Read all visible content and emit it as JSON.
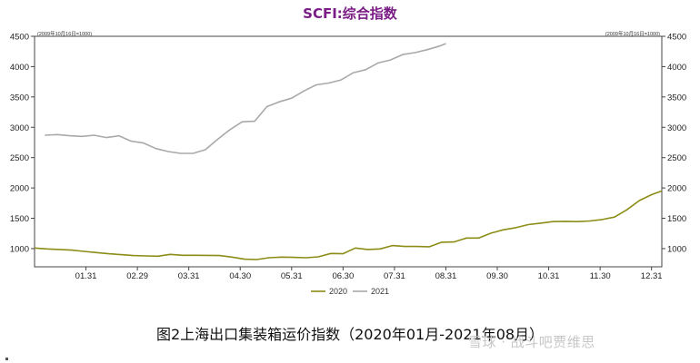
{
  "chart_data": {
    "type": "line",
    "title": "SCFI:综合指数",
    "left_note": "(2009年10月16日=1000)",
    "right_note": "(2009年10月16日=1000)",
    "ylim": [
      700,
      4500
    ],
    "yticks": [
      1000,
      1500,
      2000,
      2500,
      3000,
      3500,
      4000,
      4500
    ],
    "xlim": [
      0,
      12.2
    ],
    "xticks": [
      {
        "label": "01.31",
        "x": 1
      },
      {
        "label": "02.29",
        "x": 2
      },
      {
        "label": "03.31",
        "x": 3
      },
      {
        "label": "04.30",
        "x": 4
      },
      {
        "label": "05.31",
        "x": 5
      },
      {
        "label": "06.30",
        "x": 6
      },
      {
        "label": "07.31",
        "x": 7
      },
      {
        "label": "08.31",
        "x": 8
      },
      {
        "label": "09.30",
        "x": 9
      },
      {
        "label": "10.31",
        "x": 10
      },
      {
        "label": "11.30",
        "x": 11
      },
      {
        "label": "12.31",
        "x": 12
      }
    ],
    "series": [
      {
        "name": "2020",
        "color": "#8c8c16",
        "x": [
          0.0,
          0.24,
          0.48,
          0.72,
          0.96,
          1.2,
          1.44,
          1.68,
          1.92,
          2.16,
          2.4,
          2.64,
          2.88,
          3.12,
          3.36,
          3.6,
          3.84,
          4.08,
          4.32,
          4.56,
          4.8,
          5.04,
          5.28,
          5.52,
          5.76,
          6.0,
          6.24,
          6.48,
          6.72,
          6.96,
          7.2,
          7.44,
          7.68,
          7.92,
          8.16,
          8.4,
          8.64,
          8.88,
          9.12,
          9.36,
          9.6,
          9.84,
          10.08,
          10.32,
          10.56,
          10.8,
          11.04,
          11.28,
          11.52,
          11.76,
          12.0,
          12.2
        ],
        "values": [
          1010,
          995,
          985,
          975,
          955,
          935,
          915,
          900,
          885,
          880,
          875,
          905,
          890,
          890,
          888,
          885,
          860,
          825,
          820,
          850,
          860,
          855,
          850,
          865,
          920,
          915,
          1010,
          985,
          995,
          1050,
          1035,
          1035,
          1030,
          1105,
          1110,
          1175,
          1175,
          1255,
          1310,
          1345,
          1395,
          1420,
          1445,
          1450,
          1445,
          1455,
          1480,
          1520,
          1640,
          1790,
          1890,
          1950
        ]
      },
      {
        "name": "2021",
        "color": "#a9a9a9",
        "x": [
          0.2,
          0.44,
          0.68,
          0.92,
          1.16,
          1.4,
          1.64,
          1.88,
          2.12,
          2.36,
          2.6,
          2.84,
          3.08,
          3.32,
          3.56,
          3.8,
          4.04,
          4.28,
          4.52,
          4.76,
          5.0,
          5.24,
          5.48,
          5.72,
          5.96,
          6.2,
          6.44,
          6.68,
          6.92,
          7.16,
          7.4,
          7.64,
          7.88,
          8.0
        ],
        "values": [
          2870,
          2880,
          2860,
          2850,
          2870,
          2830,
          2860,
          2770,
          2740,
          2650,
          2600,
          2570,
          2570,
          2630,
          2800,
          2960,
          3090,
          3100,
          3340,
          3420,
          3480,
          3600,
          3700,
          3730,
          3780,
          3900,
          3950,
          4060,
          4110,
          4200,
          4230,
          4280,
          4340,
          4380
        ]
      }
    ],
    "legend_position": "bottom"
  },
  "caption": "图2上海出口集装箱运价指数（2020年01月-2021年08月）",
  "watermark": "雪球 · 战斗吧贾维思"
}
